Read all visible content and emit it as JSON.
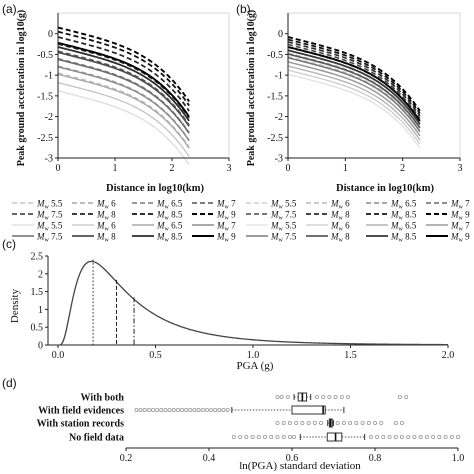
{
  "panels": {
    "a": "(a)",
    "b": "(b)",
    "c": "(c)",
    "d": "(d)"
  },
  "chart_data": [
    {
      "id": "a",
      "type": "line",
      "title": "",
      "xlabel": "Distance in log10(km)",
      "ylabel": "Peak ground acceleration in log10(g)",
      "xlim": [
        0,
        3
      ],
      "ylim": [
        -3,
        0.5
      ],
      "xticks": [
        "0",
        "1",
        "2",
        "3"
      ],
      "yticks": [
        "-3",
        "-2.5",
        "-2",
        "-1.5",
        "-1",
        "-0.5",
        "0"
      ],
      "x_end": 2.3,
      "series": [
        {
          "label": "Mw 5.5",
          "style": "dash",
          "color": "#bbbbbb",
          "width": 1.3,
          "y0": -0.95
        },
        {
          "label": "Mw 6",
          "style": "dash",
          "color": "#999999",
          "width": 1.3,
          "y0": -0.78
        },
        {
          "label": "Mw 6.5",
          "style": "dash",
          "color": "#777777",
          "width": 1.4,
          "y0": -0.6
        },
        {
          "label": "Mw 7",
          "style": "dash",
          "color": "#555555",
          "width": 1.5,
          "y0": -0.42
        },
        {
          "label": "Mw 7.5",
          "style": "dash",
          "color": "#333333",
          "width": 1.6,
          "y0": -0.25
        },
        {
          "label": "Mw 8",
          "style": "dash",
          "color": "#222222",
          "width": 1.7,
          "y0": -0.08
        },
        {
          "label": "Mw 8.5",
          "style": "dash",
          "color": "#111111",
          "width": 1.8,
          "y0": 0.05
        },
        {
          "label": "Mw 9",
          "style": "dash",
          "color": "#000000",
          "width": 1.9,
          "y0": 0.15
        },
        {
          "label": "Mw 5.5",
          "style": "solid",
          "color": "#dddddd",
          "width": 1.3,
          "y0": -1.38
        },
        {
          "label": "Mw 6",
          "style": "solid",
          "color": "#c4c4c4",
          "width": 1.3,
          "y0": -1.18
        },
        {
          "label": "Mw 6.5",
          "style": "solid",
          "color": "#aaaaaa",
          "width": 1.4,
          "y0": -0.98
        },
        {
          "label": "Mw 7",
          "style": "solid",
          "color": "#8e8e8e",
          "width": 1.5,
          "y0": -0.8
        },
        {
          "label": "Mw 7.5",
          "style": "solid",
          "color": "#6e6e6e",
          "width": 1.6,
          "y0": -0.62
        },
        {
          "label": "Mw 8",
          "style": "solid",
          "color": "#4e4e4e",
          "width": 1.7,
          "y0": -0.45
        },
        {
          "label": "Mw 8.5",
          "style": "solid",
          "color": "#2c2c2c",
          "width": 1.8,
          "y0": -0.32
        },
        {
          "label": "Mw 9",
          "style": "solid",
          "color": "#000000",
          "width": 1.9,
          "y0": -0.22
        }
      ]
    },
    {
      "id": "b",
      "type": "line",
      "title": "",
      "xlabel": "Distance in log10(km)",
      "ylabel": "Peak ground acceleration in log10(g)",
      "xlim": [
        0,
        3
      ],
      "ylim": [
        -3,
        0.5
      ],
      "xticks": [
        "0",
        "1",
        "2",
        "3"
      ],
      "yticks": [
        "-3",
        "-2.5",
        "-2",
        "-1.5",
        "-1",
        "-0.5",
        "0"
      ],
      "x_end": 2.3,
      "series": [
        {
          "label": "Mw 5.5",
          "style": "dash",
          "color": "#c8c8c8",
          "width": 1.3,
          "y0": -0.55
        },
        {
          "label": "Mw 6",
          "style": "dash",
          "color": "#aaaaaa",
          "width": 1.3,
          "y0": -0.47
        },
        {
          "label": "Mw 6.5",
          "style": "dash",
          "color": "#8a8a8a",
          "width": 1.4,
          "y0": -0.4
        },
        {
          "label": "Mw 7",
          "style": "dash",
          "color": "#6a6a6a",
          "width": 1.5,
          "y0": -0.33
        },
        {
          "label": "Mw 7.5",
          "style": "dash",
          "color": "#4a4a4a",
          "width": 1.6,
          "y0": -0.26
        },
        {
          "label": "Mw 8",
          "style": "dash",
          "color": "#2e2e2e",
          "width": 1.7,
          "y0": -0.2
        },
        {
          "label": "Mw 8.5",
          "style": "dash",
          "color": "#161616",
          "width": 1.8,
          "y0": -0.14
        },
        {
          "label": "Mw 9",
          "style": "dash",
          "color": "#000000",
          "width": 1.9,
          "y0": -0.08
        },
        {
          "label": "Mw 5.5",
          "style": "solid",
          "color": "#e0e0e0",
          "width": 1.3,
          "y0": -0.98
        },
        {
          "label": "Mw 6",
          "style": "solid",
          "color": "#cccccc",
          "width": 1.3,
          "y0": -0.88
        },
        {
          "label": "Mw 6.5",
          "style": "solid",
          "color": "#b4b4b4",
          "width": 1.4,
          "y0": -0.78
        },
        {
          "label": "Mw 7",
          "style": "solid",
          "color": "#9a9a9a",
          "width": 1.5,
          "y0": -0.68
        },
        {
          "label": "Mw 7.5",
          "style": "solid",
          "color": "#7a7a7a",
          "width": 1.6,
          "y0": -0.58
        },
        {
          "label": "Mw 8",
          "style": "solid",
          "color": "#5a5a5a",
          "width": 1.7,
          "y0": -0.49
        },
        {
          "label": "Mw 8.5",
          "style": "solid",
          "color": "#363636",
          "width": 1.8,
          "y0": -0.4
        },
        {
          "label": "Mw 9",
          "style": "solid",
          "color": "#000000",
          "width": 1.9,
          "y0": -0.32
        }
      ]
    },
    {
      "id": "c",
      "type": "line",
      "title": "",
      "xlabel": "PGA (g)",
      "ylabel": "Density",
      "xlim": [
        0,
        2.0
      ],
      "ylim": [
        0,
        2.5
      ],
      "xticks": [
        "0.0",
        "0.5",
        "1.0",
        "1.5",
        "2.0"
      ],
      "yticks": [
        "0",
        "0.5",
        "1",
        "1.5",
        "2",
        "2.5"
      ],
      "curve": {
        "type": "lognormal",
        "median": 0.3,
        "sigma": 0.75,
        "color": "#444444"
      },
      "markers": [
        {
          "x": 0.18,
          "style": "dotted"
        },
        {
          "x": 0.3,
          "style": "dashed"
        },
        {
          "x": 0.39,
          "style": "dashdot"
        }
      ]
    },
    {
      "id": "d",
      "type": "box",
      "title": "",
      "xlabel": "ln(PGA) standard deviation",
      "ylabel": "",
      "xlim": [
        0.2,
        1.0
      ],
      "xticks": [
        "0.2",
        "0.4",
        "0.6",
        "0.8",
        "1.0"
      ],
      "categories": [
        "With both",
        "With field evidences",
        "With station records",
        "No field data"
      ],
      "boxes": [
        {
          "q1": 0.615,
          "median": 0.625,
          "q3": 0.635,
          "whisker_low": 0.605,
          "whisker_high": 0.645,
          "outliers": [
            0.565,
            0.575,
            0.59,
            0.66,
            0.675,
            0.69,
            0.705,
            0.72,
            0.735,
            0.86,
            0.875
          ]
        },
        {
          "q1": 0.6,
          "median": 0.675,
          "q3": 0.68,
          "whisker_low": 0.455,
          "whisker_high": 0.725,
          "outliers": [
            0.225,
            0.235,
            0.245,
            0.255,
            0.265,
            0.275,
            0.285,
            0.295,
            0.305,
            0.315,
            0.325,
            0.335,
            0.345,
            0.355,
            0.365,
            0.375,
            0.385,
            0.395,
            0.405,
            0.415,
            0.425,
            0.435,
            0.445
          ]
        },
        {
          "q1": 0.69,
          "median": 0.693,
          "q3": 0.697,
          "whisker_low": 0.686,
          "whisker_high": 0.7,
          "outliers": [
            0.565,
            0.58,
            0.595,
            0.61,
            0.625,
            0.64,
            0.655,
            0.67,
            0.71,
            0.725,
            0.74,
            0.755,
            0.77,
            0.785,
            0.8,
            0.815,
            0.85,
            0.865
          ]
        },
        {
          "q1": 0.685,
          "median": 0.705,
          "q3": 0.72,
          "whisker_low": 0.62,
          "whisker_high": 0.775,
          "outliers": [
            0.46,
            0.475,
            0.49,
            0.505,
            0.52,
            0.535,
            0.55,
            0.565,
            0.58,
            0.595,
            0.605,
            0.79,
            0.805,
            0.82,
            0.835,
            0.85,
            0.865,
            0.88,
            0.895,
            0.91,
            0.925,
            0.94,
            0.955,
            0.97,
            0.985,
            1.0
          ]
        }
      ]
    }
  ],
  "legends": [
    {
      "panel": "a",
      "entries": [
        {
          "m": "M",
          "sub": "w",
          "val": "5.5",
          "style": "dash",
          "color": "#bbbbbb",
          "width": 1.3
        },
        {
          "m": "M",
          "sub": "w",
          "val": "6",
          "style": "dash",
          "color": "#999999",
          "width": 1.3
        },
        {
          "m": "M",
          "sub": "w",
          "val": "6.5",
          "style": "dash",
          "color": "#777777",
          "width": 1.4
        },
        {
          "m": "M",
          "sub": "w",
          "val": "7",
          "style": "dash",
          "color": "#555555",
          "width": 1.5
        },
        {
          "m": "M",
          "sub": "w",
          "val": "7.5",
          "style": "dash",
          "color": "#333333",
          "width": 1.6
        },
        {
          "m": "M",
          "sub": "w",
          "val": "8",
          "style": "dash",
          "color": "#222222",
          "width": 1.7
        },
        {
          "m": "M",
          "sub": "w",
          "val": "8.5",
          "style": "dash",
          "color": "#111111",
          "width": 1.8
        },
        {
          "m": "M",
          "sub": "w",
          "val": "9",
          "style": "dash",
          "color": "#000000",
          "width": 1.9
        },
        {
          "m": "M",
          "sub": "w",
          "val": "5.5",
          "style": "solid",
          "color": "#dddddd",
          "width": 1.3
        },
        {
          "m": "M",
          "sub": "w",
          "val": "6",
          "style": "solid",
          "color": "#c4c4c4",
          "width": 1.3
        },
        {
          "m": "M",
          "sub": "w",
          "val": "6.5",
          "style": "solid",
          "color": "#aaaaaa",
          "width": 1.4
        },
        {
          "m": "M",
          "sub": "w",
          "val": "7",
          "style": "solid",
          "color": "#8e8e8e",
          "width": 1.5
        },
        {
          "m": "M",
          "sub": "w",
          "val": "7.5",
          "style": "solid",
          "color": "#6e6e6e",
          "width": 1.6
        },
        {
          "m": "M",
          "sub": "w",
          "val": "8",
          "style": "solid",
          "color": "#4e4e4e",
          "width": 1.7
        },
        {
          "m": "M",
          "sub": "w",
          "val": "8.5",
          "style": "solid",
          "color": "#2c2c2c",
          "width": 1.8
        },
        {
          "m": "M",
          "sub": "w",
          "val": "9",
          "style": "solid",
          "color": "#000000",
          "width": 1.9
        }
      ]
    },
    {
      "panel": "b",
      "entries": [
        {
          "m": "M",
          "sub": "w",
          "val": "5.5",
          "style": "dash",
          "color": "#c8c8c8",
          "width": 1.3
        },
        {
          "m": "M",
          "sub": "w",
          "val": "6",
          "style": "dash",
          "color": "#aaaaaa",
          "width": 1.3
        },
        {
          "m": "M",
          "sub": "w",
          "val": "6.5",
          "style": "dash",
          "color": "#8a8a8a",
          "width": 1.4
        },
        {
          "m": "M",
          "sub": "w",
          "val": "7",
          "style": "dash",
          "color": "#6a6a6a",
          "width": 1.5
        },
        {
          "m": "M",
          "sub": "w",
          "val": "7.5",
          "style": "dash",
          "color": "#4a4a4a",
          "width": 1.6
        },
        {
          "m": "M",
          "sub": "w",
          "val": "8",
          "style": "dash",
          "color": "#2e2e2e",
          "width": 1.7
        },
        {
          "m": "M",
          "sub": "w",
          "val": "8.5",
          "style": "dash",
          "color": "#161616",
          "width": 1.8
        },
        {
          "m": "M",
          "sub": "w",
          "val": "9",
          "style": "dash",
          "color": "#000000",
          "width": 1.9
        },
        {
          "m": "M",
          "sub": "w",
          "val": "5.5",
          "style": "solid",
          "color": "#e0e0e0",
          "width": 1.3
        },
        {
          "m": "M",
          "sub": "w",
          "val": "6",
          "style": "solid",
          "color": "#cccccc",
          "width": 1.3
        },
        {
          "m": "M",
          "sub": "w",
          "val": "6.5",
          "style": "solid",
          "color": "#b4b4b4",
          "width": 1.4
        },
        {
          "m": "M",
          "sub": "w",
          "val": "7",
          "style": "solid",
          "color": "#9a9a9a",
          "width": 1.5
        },
        {
          "m": "M",
          "sub": "w",
          "val": "7.5",
          "style": "solid",
          "color": "#7a7a7a",
          "width": 1.6
        },
        {
          "m": "M",
          "sub": "w",
          "val": "8",
          "style": "solid",
          "color": "#5a5a5a",
          "width": 1.7
        },
        {
          "m": "M",
          "sub": "w",
          "val": "8.5",
          "style": "solid",
          "color": "#363636",
          "width": 1.8
        },
        {
          "m": "M",
          "sub": "w",
          "val": "9",
          "style": "solid",
          "color": "#000000",
          "width": 1.9
        }
      ]
    }
  ]
}
